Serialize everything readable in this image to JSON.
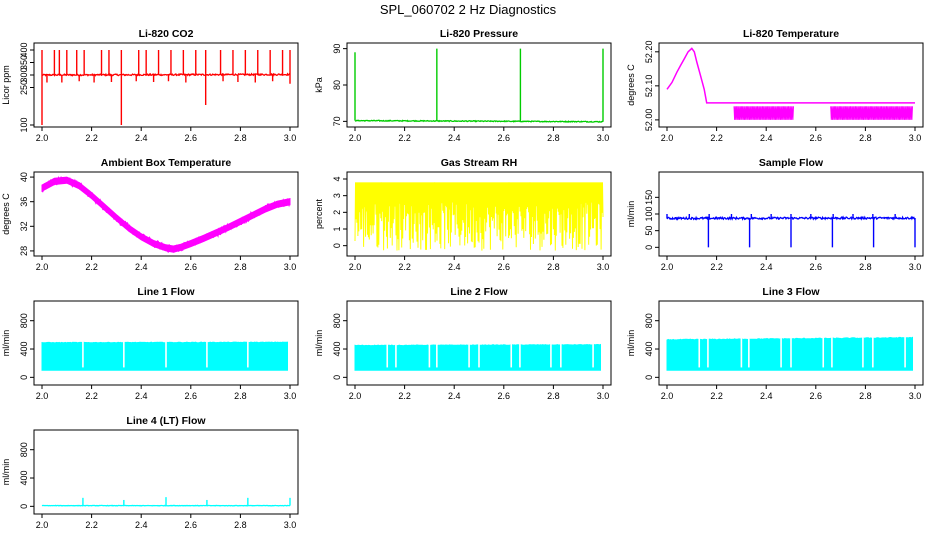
{
  "page_title": "SPL_060702  2 Hz Diagnostics",
  "colors": {
    "red": "#ff0000",
    "green": "#00cc00",
    "magenta": "#ff00ff",
    "yellow": "#ffff00",
    "blue": "#0000ff",
    "cyan": "#00ffff",
    "axis": "#000000"
  },
  "chart_data": [
    {
      "id": "co2",
      "type": "line",
      "title": "Li-820 CO2",
      "ylabel": "Licor ppm",
      "xlim": [
        2.0,
        3.0
      ],
      "ylim": [
        100,
        420
      ],
      "xticks": [
        2.0,
        2.2,
        2.4,
        2.6,
        2.8,
        3.0
      ],
      "xtick_labels": [
        "2.0",
        "2.2",
        "2.4",
        "2.6",
        "2.8",
        "3.0"
      ],
      "yticks": [
        100,
        250,
        300,
        350,
        400
      ],
      "ytick_labels": [
        "100",
        "250",
        "300",
        "350",
        "400"
      ],
      "color": "red",
      "pattern": "baseline_spikes",
      "series": {
        "baseline_start": 300,
        "baseline_end": 302,
        "noise": 3,
        "spikes_up_at": [
          2.0,
          2.05,
          2.07,
          2.1,
          2.14,
          2.17,
          2.24,
          2.27,
          2.32,
          2.39,
          2.42,
          2.47,
          2.52,
          2.57,
          2.62,
          2.66,
          2.72,
          2.77,
          2.82,
          2.87,
          2.92,
          2.97,
          3.0
        ],
        "spikes_up_value": 400,
        "spikes_down_at": [
          2.0,
          2.02,
          2.08,
          2.15,
          2.21,
          2.28,
          2.32,
          2.38,
          2.45,
          2.51,
          2.58,
          2.66,
          2.73,
          2.79,
          2.86,
          2.93,
          3.0
        ],
        "spikes_down_values": [
          100,
          270,
          270,
          275,
          270,
          272,
          100,
          275,
          272,
          275,
          270,
          180,
          275,
          272,
          270,
          275,
          265
        ]
      }
    },
    {
      "id": "pressure",
      "type": "line",
      "title": "Li-820 Pressure",
      "ylabel": "kPa",
      "xlim": [
        2.0,
        3.0
      ],
      "ylim": [
        69,
        91
      ],
      "xticks": [
        2.0,
        2.2,
        2.4,
        2.6,
        2.8,
        3.0
      ],
      "xtick_labels": [
        "2.0",
        "2.2",
        "2.4",
        "2.6",
        "2.8",
        "3.0"
      ],
      "yticks": [
        70,
        80,
        90
      ],
      "ytick_labels": [
        "70",
        "80",
        "90"
      ],
      "color": "green",
      "pattern": "baseline_spikes",
      "series": {
        "baseline_start": 70.2,
        "baseline_end": 69.9,
        "noise": 0.12,
        "spikes_up_at": [
          2.0,
          2.33,
          2.667,
          3.0
        ],
        "spikes_up_values": [
          89,
          90,
          90,
          90
        ],
        "spikes_down_at": [],
        "spikes_down_values": []
      }
    },
    {
      "id": "licor-temp",
      "type": "line",
      "title": "Li-820 Temperature",
      "ylabel": "degrees C",
      "xlim": [
        2.0,
        3.0
      ],
      "ylim": [
        51.985,
        52.22
      ],
      "xticks": [
        2.0,
        2.2,
        2.4,
        2.6,
        2.8,
        3.0
      ],
      "xtick_labels": [
        "2.0",
        "2.2",
        "2.4",
        "2.6",
        "2.8",
        "3.0"
      ],
      "yticks": [
        52.0,
        52.1,
        52.2
      ],
      "ytick_labels": [
        "52.00",
        "52.10",
        "52.20"
      ],
      "color": "magenta",
      "pattern": "temperature_steps",
      "series": {
        "x": [
          2.0,
          2.02,
          2.04,
          2.055,
          2.07,
          2.085,
          2.1,
          2.11,
          2.12,
          2.135,
          2.15,
          2.16,
          2.2,
          2.25,
          2.3,
          2.35,
          2.4,
          2.45,
          2.5,
          2.55,
          2.6,
          2.65,
          2.7,
          2.75,
          2.8,
          2.85,
          2.9,
          2.95,
          3.0
        ],
        "y": [
          52.09,
          52.11,
          52.14,
          52.16,
          52.18,
          52.2,
          52.21,
          52.2,
          52.17,
          52.13,
          52.09,
          52.05,
          52.05,
          52.05,
          52.05,
          52.05,
          52.05,
          52.05,
          52.05,
          52.05,
          52.05,
          52.05,
          52.05,
          52.05,
          52.05,
          52.05,
          52.05,
          52.05,
          52.05
        ],
        "oscillation_ranges": [
          [
            2.27,
            2.51
          ],
          [
            2.66,
            2.99
          ]
        ],
        "oscillation_low": 52.0,
        "oscillation_high": 52.04
      }
    },
    {
      "id": "ambient-temp",
      "type": "line",
      "title": "Ambient Box Temperature",
      "ylabel": "degrees C",
      "xlim": [
        2.0,
        3.0
      ],
      "ylim": [
        27.5,
        40.5
      ],
      "xticks": [
        2.0,
        2.2,
        2.4,
        2.6,
        2.8,
        3.0
      ],
      "xtick_labels": [
        "2.0",
        "2.2",
        "2.4",
        "2.6",
        "2.8",
        "3.0"
      ],
      "yticks": [
        28,
        32,
        36,
        40
      ],
      "ytick_labels": [
        "28",
        "32",
        "36",
        "40"
      ],
      "color": "magenta",
      "pattern": "band",
      "series": {
        "x": [
          2.0,
          2.05,
          2.1,
          2.15,
          2.2,
          2.25,
          2.3,
          2.35,
          2.4,
          2.45,
          2.5,
          2.53,
          2.56,
          2.6,
          2.65,
          2.7,
          2.75,
          2.8,
          2.85,
          2.9,
          2.95,
          3.0
        ],
        "y": [
          38.2,
          39.3,
          39.5,
          38.6,
          37.0,
          35.2,
          33.4,
          31.7,
          30.3,
          29.2,
          28.5,
          28.3,
          28.6,
          29.2,
          30.0,
          30.9,
          31.8,
          32.8,
          33.8,
          34.8,
          35.6,
          36.0
        ],
        "band_width": 1.0
      }
    },
    {
      "id": "gas-rh",
      "type": "line",
      "title": "Gas Stream RH",
      "ylabel": "percent",
      "xlim": [
        2.0,
        3.0
      ],
      "ylim": [
        -0.5,
        4.3
      ],
      "xticks": [
        2.0,
        2.2,
        2.4,
        2.6,
        2.8,
        3.0
      ],
      "xtick_labels": [
        "2.0",
        "2.2",
        "2.4",
        "2.6",
        "2.8",
        "3.0"
      ],
      "yticks": [
        0,
        1,
        2,
        3,
        4
      ],
      "ytick_labels": [
        "0",
        "1",
        "2",
        "3",
        "4"
      ],
      "color": "yellow",
      "pattern": "noise_block",
      "series": {
        "x_range": [
          2.0,
          3.0
        ],
        "top": 3.8,
        "low_min": -0.3,
        "low_max": 2.6
      }
    },
    {
      "id": "sample-flow",
      "type": "line",
      "title": "Sample Flow",
      "ylabel": "ml/min",
      "xlim": [
        2.0,
        3.0
      ],
      "ylim": [
        -20,
        220
      ],
      "xticks": [
        2.0,
        2.2,
        2.4,
        2.6,
        2.8,
        3.0
      ],
      "xtick_labels": [
        "2.0",
        "2.2",
        "2.4",
        "2.6",
        "2.8",
        "3.0"
      ],
      "yticks": [
        0,
        50,
        100,
        150
      ],
      "ytick_labels": [
        "0",
        "50",
        "100",
        "150"
      ],
      "color": "blue",
      "pattern": "baseline_spikes",
      "series": {
        "baseline_start": 87,
        "baseline_end": 88,
        "noise": 3,
        "spikes_up_at": [
          2.0,
          2.09,
          2.17,
          2.26,
          2.34,
          2.42,
          2.5,
          2.58,
          2.67,
          2.75,
          2.83,
          2.92
        ],
        "spikes_up_value": 100,
        "spikes_down_at": [
          2.167,
          2.333,
          2.5,
          2.667,
          2.833,
          3.0
        ],
        "spikes_down_values": [
          0,
          0,
          0,
          0,
          0,
          0
        ]
      }
    },
    {
      "id": "line1-flow",
      "type": "line",
      "title": "Line 1 Flow",
      "ylabel": "ml/min",
      "xlim": [
        2.0,
        3.0
      ],
      "ylim": [
        -80,
        1050
      ],
      "xticks": [
        2.0,
        2.2,
        2.4,
        2.6,
        2.8,
        3.0
      ],
      "xtick_labels": [
        "2.0",
        "2.2",
        "2.4",
        "2.6",
        "2.8",
        "3.0"
      ],
      "yticks": [
        0,
        400,
        800
      ],
      "ytick_labels": [
        "0",
        "400",
        "800"
      ],
      "color": "cyan",
      "pattern": "flow_block",
      "series": {
        "x_range": [
          2.0,
          2.99
        ],
        "low": 100,
        "high_start": 490,
        "high_end": 495,
        "noise": 4,
        "gaps_at": [
          2.165,
          2.33,
          2.5,
          2.665,
          2.83
        ]
      }
    },
    {
      "id": "line2-flow",
      "type": "line",
      "title": "Line 2 Flow",
      "ylabel": "ml/min",
      "xlim": [
        2.0,
        3.0
      ],
      "ylim": [
        -80,
        1050
      ],
      "xticks": [
        2.0,
        2.2,
        2.4,
        2.6,
        2.8,
        3.0
      ],
      "xtick_labels": [
        "2.0",
        "2.2",
        "2.4",
        "2.6",
        "2.8",
        "3.0"
      ],
      "yticks": [
        0,
        400,
        800
      ],
      "ytick_labels": [
        "0",
        "400",
        "800"
      ],
      "color": "cyan",
      "pattern": "flow_block",
      "series": {
        "x_range": [
          2.0,
          2.99
        ],
        "low": 100,
        "high_start": 450,
        "high_end": 460,
        "noise": 4,
        "gaps_at": [
          2.13,
          2.165,
          2.3,
          2.33,
          2.46,
          2.5,
          2.63,
          2.665,
          2.79,
          2.83,
          2.96
        ]
      }
    },
    {
      "id": "line3-flow",
      "type": "line",
      "title": "Line 3 Flow",
      "ylabel": "ml/min",
      "xlim": [
        2.0,
        3.0
      ],
      "ylim": [
        -80,
        1050
      ],
      "xticks": [
        2.0,
        2.2,
        2.4,
        2.6,
        2.8,
        3.0
      ],
      "xtick_labels": [
        "2.0",
        "2.2",
        "2.4",
        "2.6",
        "2.8",
        "3.0"
      ],
      "yticks": [
        0,
        400,
        800
      ],
      "ytick_labels": [
        "0",
        "400",
        "800"
      ],
      "color": "cyan",
      "pattern": "flow_block",
      "series": {
        "x_range": [
          2.0,
          2.99
        ],
        "low": 100,
        "high_start": 530,
        "high_end": 560,
        "noise": 6,
        "gaps_at": [
          2.13,
          2.165,
          2.3,
          2.33,
          2.46,
          2.5,
          2.63,
          2.665,
          2.79,
          2.83,
          2.96
        ]
      }
    },
    {
      "id": "line4-flow",
      "type": "line",
      "title": "Line 4 (LT) Flow",
      "ylabel": "ml/min",
      "xlim": [
        2.0,
        3.0
      ],
      "ylim": [
        -80,
        1050
      ],
      "xticks": [
        2.0,
        2.2,
        2.4,
        2.6,
        2.8,
        3.0
      ],
      "xtick_labels": [
        "2.0",
        "2.2",
        "2.4",
        "2.6",
        "2.8",
        "3.0"
      ],
      "yticks": [
        0,
        400,
        800
      ],
      "ytick_labels": [
        "0",
        "400",
        "800"
      ],
      "color": "cyan",
      "pattern": "baseline_spikes",
      "series": {
        "baseline_start": 10,
        "baseline_end": 10,
        "noise": 3,
        "spikes_up_at": [
          2.165,
          2.33,
          2.5,
          2.665,
          2.83,
          3.0
        ],
        "spikes_up_values": [
          120,
          90,
          130,
          90,
          120,
          120
        ],
        "spikes_down_at": [],
        "spikes_down_values": []
      }
    }
  ]
}
